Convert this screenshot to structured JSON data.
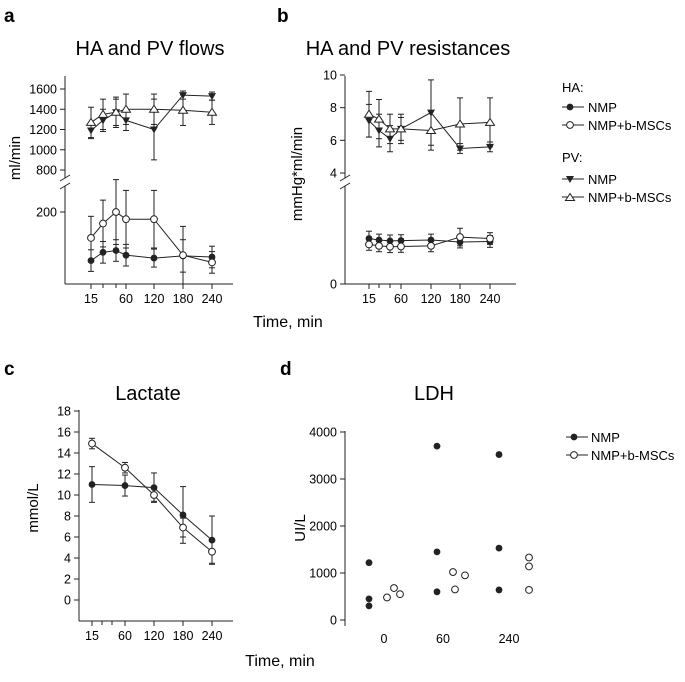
{
  "panels": {
    "a": {
      "letter": "a",
      "title": "HA and PV flows",
      "ylabel": "ml/min"
    },
    "b": {
      "letter": "b",
      "title": "HA and PV resistances",
      "ylabel": "mmHg*ml/min"
    },
    "c": {
      "letter": "c",
      "title": "Lactate",
      "ylabel": "mmol/L"
    },
    "d": {
      "letter": "d",
      "title": "LDH",
      "ylabel": "UI/L"
    }
  },
  "xlabel_ab": "Time, min",
  "xlabel_cd": "Time, min",
  "legend_ab": {
    "ha_header": "HA:",
    "pv_header": "PV:",
    "nmp": "NMP",
    "nmp_mscs": "NMP+b-MSCs"
  },
  "legend_d": {
    "nmp": "NMP",
    "nmp_mscs": "NMP+b-MSCs"
  },
  "chart_data": [
    {
      "id": "a",
      "type": "line",
      "title": "HA and PV flows",
      "xlabel": "Time, min",
      "ylabel": "ml/min",
      "x": [
        15,
        30,
        45,
        60,
        120,
        180,
        240
      ],
      "xticks": [
        15,
        60,
        120,
        180,
        240
      ],
      "upper_axis": {
        "ylim": [
          800,
          1600
        ],
        "yticks": [
          800,
          1000,
          1200,
          1400,
          1600
        ]
      },
      "lower_axis": {
        "ylim": [
          0,
          250
        ],
        "yticks": [
          200
        ]
      },
      "series": [
        {
          "name": "PV NMP",
          "axis": "upper",
          "marker": "triangle-down-filled",
          "values": [
            1190,
            1290,
            1370,
            1290,
            1200,
            1540,
            1530
          ],
          "errors": [
            80,
            110,
            130,
            100,
            300,
            40,
            40
          ]
        },
        {
          "name": "PV NMP+b-MSCs",
          "axis": "upper",
          "marker": "triangle-up-open",
          "values": [
            1270,
            1350,
            1370,
            1400,
            1400,
            1390,
            1370
          ],
          "errors": [
            150,
            150,
            150,
            150,
            150,
            150,
            120
          ]
        },
        {
          "name": "HA NMP",
          "axis": "lower",
          "marker": "circle-filled",
          "values": [
            65,
            88,
            93,
            80,
            72,
            78,
            75
          ],
          "errors": [
            30,
            30,
            30,
            30,
            25,
            45,
            30
          ]
        },
        {
          "name": "HA NMP+b-MSCs",
          "axis": "lower",
          "marker": "circle-open",
          "values": [
            128,
            168,
            200,
            180,
            180,
            80,
            60
          ],
          "errors": [
            60,
            65,
            90,
            80,
            80,
            80,
            30
          ]
        }
      ]
    },
    {
      "id": "b",
      "type": "line",
      "title": "HA and PV resistances",
      "xlabel": "Time, min",
      "ylabel": "mmHg*ml/min",
      "x": [
        15,
        30,
        45,
        60,
        120,
        180,
        240
      ],
      "xticks": [
        15,
        60,
        120,
        180,
        240
      ],
      "upper_axis": {
        "ylim": [
          4,
          10
        ],
        "yticks": [
          4,
          6,
          8,
          10
        ]
      },
      "lower_axis": {
        "ylim": [
          0,
          3
        ],
        "yticks": [
          0
        ]
      },
      "series": [
        {
          "name": "PV NMP",
          "axis": "upper",
          "marker": "triangle-down-filled",
          "values": [
            7.2,
            6.6,
            6.1,
            6.7,
            7.7,
            5.5,
            5.6
          ],
          "errors": [
            1.0,
            1.0,
            0.8,
            0.9,
            2.0,
            0.3,
            0.3
          ]
        },
        {
          "name": "PV NMP+b-MSCs",
          "axis": "upper",
          "marker": "triangle-up-open",
          "values": [
            7.6,
            7.3,
            6.7,
            6.7,
            6.6,
            7.0,
            7.1
          ],
          "errors": [
            1.4,
            1.2,
            0.9,
            0.7,
            1.2,
            1.6,
            1.5
          ]
        },
        {
          "name": "HA NMP",
          "axis": "lower",
          "marker": "circle-filled",
          "values": [
            1.55,
            1.5,
            1.47,
            1.48,
            1.5,
            1.43,
            1.45
          ],
          "errors": [
            0.25,
            0.2,
            0.2,
            0.2,
            0.2,
            0.2,
            0.2
          ]
        },
        {
          "name": "HA NMP+b-MSCs",
          "axis": "lower",
          "marker": "circle-open",
          "values": [
            1.35,
            1.3,
            1.27,
            1.28,
            1.3,
            1.6,
            1.55
          ],
          "errors": [
            0.2,
            0.2,
            0.2,
            0.2,
            0.2,
            0.3,
            0.2
          ]
        }
      ]
    },
    {
      "id": "c",
      "type": "line",
      "title": "Lactate",
      "xlabel": "Time, min",
      "ylabel": "mmol/L",
      "x": [
        15,
        60,
        120,
        180,
        240
      ],
      "xticks": [
        15,
        60,
        120,
        180,
        240
      ],
      "ylim": [
        0,
        18
      ],
      "yticks": [
        0,
        2,
        4,
        6,
        8,
        10,
        12,
        14,
        16,
        18
      ],
      "series": [
        {
          "name": "NMP",
          "marker": "circle-filled",
          "values": [
            11.0,
            10.9,
            10.7,
            8.1,
            5.7
          ],
          "errors": [
            1.7,
            1.0,
            1.4,
            2.7,
            2.3
          ]
        },
        {
          "name": "NMP+b-MSCs",
          "marker": "circle-open",
          "values": [
            14.9,
            12.6,
            10.0,
            6.9,
            4.6
          ],
          "errors": [
            0.5,
            0.5,
            0.6,
            0.9,
            1.1
          ]
        }
      ]
    },
    {
      "id": "d",
      "type": "scatter",
      "title": "LDH",
      "xlabel": "Time, min",
      "ylabel": "UI/L",
      "xticks": [
        "0",
        "60",
        "240"
      ],
      "ylim": [
        0,
        4000
      ],
      "yticks": [
        0,
        1000,
        2000,
        3000,
        4000
      ],
      "series": [
        {
          "name": "NMP",
          "marker": "circle-filled",
          "groups": [
            {
              "time": "0",
              "values": [
                1220,
                450,
                300
              ]
            },
            {
              "time": "60",
              "values": [
                3700,
                1450,
                600
              ]
            },
            {
              "time": "240",
              "values": [
                3520,
                1530,
                640
              ]
            }
          ]
        },
        {
          "name": "NMP+b-MSCs",
          "marker": "circle-open",
          "groups": [
            {
              "time": "0",
              "values": [
                480,
                680,
                550
              ]
            },
            {
              "time": "60",
              "values": [
                1020,
                650,
                950
              ]
            },
            {
              "time": "240",
              "values": [
                1330,
                1140,
                640
              ]
            }
          ]
        }
      ]
    }
  ]
}
